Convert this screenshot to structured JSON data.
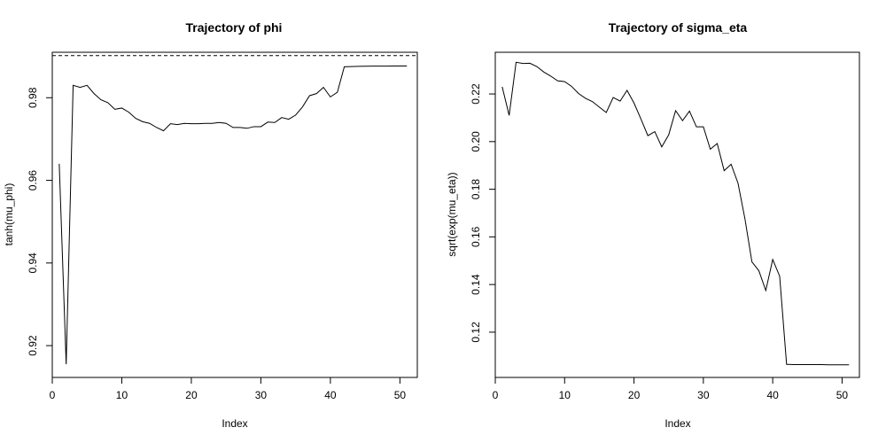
{
  "chart_data": [
    {
      "type": "line",
      "title": "Trajectory of phi",
      "xlabel": "Index",
      "ylabel": "tanh(mu_phi)",
      "xlim": [
        0,
        52.5
      ],
      "ylim": [
        0.9123,
        0.991
      ],
      "xticks": [
        0,
        10,
        20,
        30,
        40,
        50
      ],
      "xtick_labels": [
        "0",
        "10",
        "20",
        "30",
        "40",
        "50"
      ],
      "yticks": [
        0.92,
        0.94,
        0.96,
        0.98
      ],
      "ytick_labels": [
        "0.92",
        "0.94",
        "0.96",
        "0.98"
      ],
      "reference_line": {
        "y": 0.9902,
        "style": "dashed"
      },
      "x": [
        1,
        2,
        3,
        4,
        5,
        6,
        7,
        8,
        9,
        10,
        11,
        12,
        13,
        14,
        15,
        16,
        17,
        18,
        19,
        20,
        21,
        22,
        23,
        24,
        25,
        26,
        27,
        28,
        29,
        30,
        31,
        32,
        33,
        34,
        35,
        36,
        37,
        38,
        39,
        40,
        41,
        42,
        43,
        44,
        45,
        46,
        47,
        48,
        49,
        50,
        51
      ],
      "y": [
        0.964,
        0.9155,
        0.983,
        0.9825,
        0.983,
        0.981,
        0.9795,
        0.9788,
        0.9772,
        0.9775,
        0.9765,
        0.975,
        0.9742,
        0.9738,
        0.9728,
        0.972,
        0.9737,
        0.9735,
        0.9738,
        0.9737,
        0.9737,
        0.9738,
        0.9738,
        0.974,
        0.9738,
        0.9728,
        0.9728,
        0.9726,
        0.973,
        0.973,
        0.9741,
        0.974,
        0.9752,
        0.9748,
        0.9758,
        0.9778,
        0.9805,
        0.981,
        0.9825,
        0.9802,
        0.9813,
        0.9875,
        0.98755,
        0.9876,
        0.98762,
        0.98764,
        0.98765,
        0.98766,
        0.98767,
        0.98768,
        0.98768
      ]
    },
    {
      "type": "line",
      "title": "Trajectory of sigma_eta",
      "xlabel": "Index",
      "ylabel": "sqrt(exp(mu_eta))",
      "xlim": [
        0,
        52.5
      ],
      "ylim": [
        0.101,
        0.2375
      ],
      "xticks": [
        0,
        10,
        20,
        30,
        40,
        50
      ],
      "xtick_labels": [
        "0",
        "10",
        "20",
        "30",
        "40",
        "50"
      ],
      "yticks": [
        0.12,
        0.14,
        0.16,
        0.18,
        0.2,
        0.22
      ],
      "ytick_labels": [
        "0.12",
        "0.14",
        "0.16",
        "0.18",
        "0.20",
        "0.22"
      ],
      "x": [
        1,
        2,
        3,
        4,
        5,
        6,
        7,
        8,
        9,
        10,
        11,
        12,
        13,
        14,
        15,
        16,
        17,
        18,
        19,
        20,
        21,
        22,
        23,
        24,
        25,
        26,
        27,
        28,
        29,
        30,
        31,
        32,
        33,
        34,
        35,
        36,
        37,
        38,
        39,
        40,
        41,
        42,
        43,
        44,
        45,
        46,
        47,
        48,
        49,
        50,
        51
      ],
      "y": [
        0.223,
        0.211,
        0.2333,
        0.2328,
        0.2329,
        0.2315,
        0.2292,
        0.2275,
        0.2255,
        0.2252,
        0.2232,
        0.2202,
        0.2182,
        0.2168,
        0.2145,
        0.2122,
        0.2185,
        0.217,
        0.2215,
        0.2162,
        0.2095,
        0.2025,
        0.2042,
        0.1978,
        0.2028,
        0.213,
        0.2088,
        0.2128,
        0.2062,
        0.2062,
        0.1968,
        0.1992,
        0.1878,
        0.1905,
        0.1825,
        0.1675,
        0.1495,
        0.1458,
        0.1375,
        0.1505,
        0.1435,
        0.1065,
        0.1064,
        0.1064,
        0.1064,
        0.1064,
        0.1064,
        0.1063,
        0.1063,
        0.1063,
        0.1063
      ]
    }
  ]
}
